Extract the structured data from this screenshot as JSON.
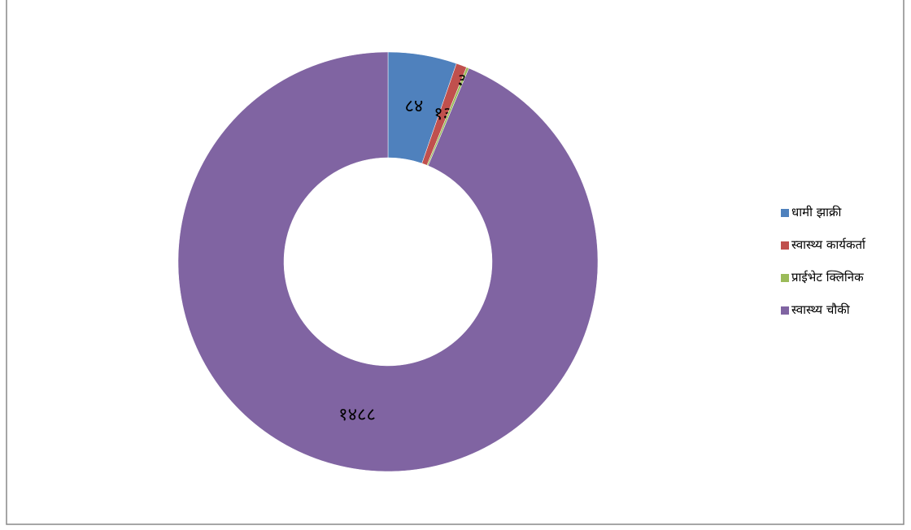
{
  "chart_data": {
    "type": "donut",
    "categories": [
      "धामी झाक्री",
      "स्वास्थ्य कार्यकर्ता",
      "प्राईभेट क्लिनिक",
      "स्वास्थ्य चौकी"
    ],
    "values": [
      84,
      13,
      3,
      1488
    ],
    "value_labels": [
      "८४",
      "१३",
      "३",
      "१४८८"
    ],
    "colors": [
      "#4f81bd",
      "#c0504d",
      "#9bbb59",
      "#8064a2"
    ],
    "legend": "right"
  }
}
